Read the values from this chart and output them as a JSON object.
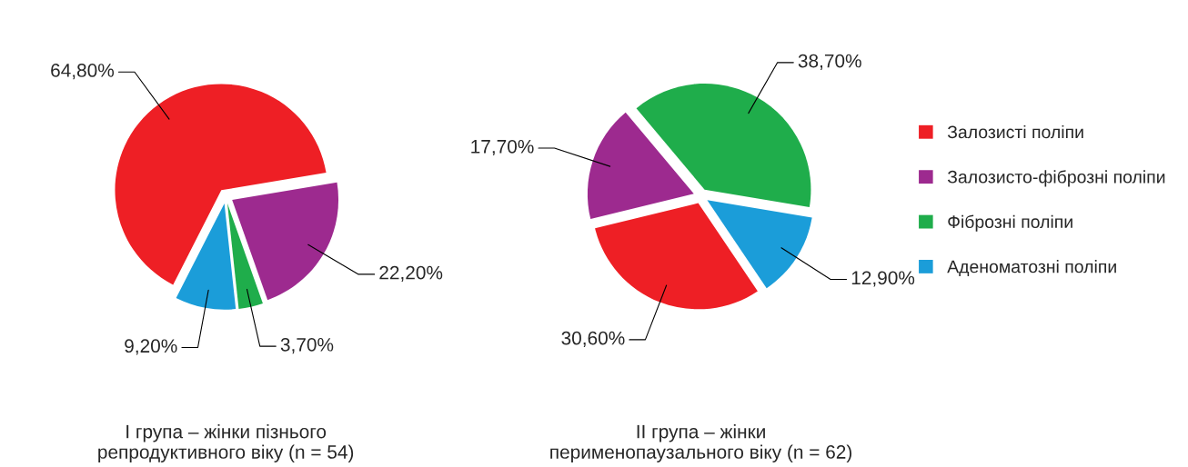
{
  "chart_data": [
    {
      "type": "pie",
      "title": "I група – жінки пізнього\nрепродуктивного віку (n = 54)",
      "categories": [
        "Залозисті поліпи",
        "Залозисто-фіброзні поліпи",
        "Фіброзні поліпи",
        "Аденоматозні поліпи"
      ],
      "values": [
        64.8,
        22.2,
        3.7,
        9.2
      ],
      "colors": [
        "#ee1f25",
        "#9d2a8f",
        "#1fad4b",
        "#1b9dd9"
      ],
      "value_labels": [
        "64,80%",
        "22,20%",
        "3,70%",
        "9,20%"
      ],
      "legend": "right"
    },
    {
      "type": "pie",
      "title": "II група – жінки\nперименопаузального віку (n = 62)",
      "categories": [
        null,
        null,
        null,
        null
      ],
      "values": [
        30.6,
        17.7,
        38.7,
        12.9
      ],
      "colors": [
        "#ee1f25",
        "#9d2a8f",
        "#1fad4b",
        "#1b9dd9"
      ],
      "value_labels": [
        "30,60%",
        "17,70%",
        "38,70%",
        "12,90%"
      ]
    }
  ]
}
